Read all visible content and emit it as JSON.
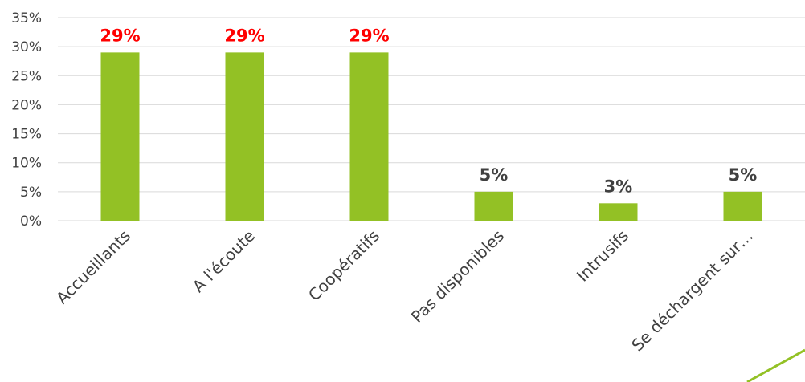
{
  "chart_data": {
    "type": "bar",
    "categories": [
      "Accueillants",
      "A l'écoute",
      "Coopératifs",
      "Pas disponibles",
      "Intrusifs",
      "Se déchargent sur…"
    ],
    "values": [
      29,
      29,
      29,
      5,
      3,
      5
    ],
    "data_labels": [
      "29%",
      "29%",
      "29%",
      "5%",
      "3%",
      "5%"
    ],
    "y_ticks": [
      "0%",
      "5%",
      "10%",
      "15%",
      "20%",
      "25%",
      "30%",
      "35%"
    ],
    "ylim": [
      0,
      35
    ],
    "grid": true,
    "legend": "none",
    "title": "",
    "xlabel": "",
    "ylabel": "",
    "colors": {
      "bar": "#93C125",
      "label_highlight": "#FF0000",
      "label_default": "#404040",
      "grid": "#D9D9D9",
      "accent_line": "#93C125"
    }
  }
}
